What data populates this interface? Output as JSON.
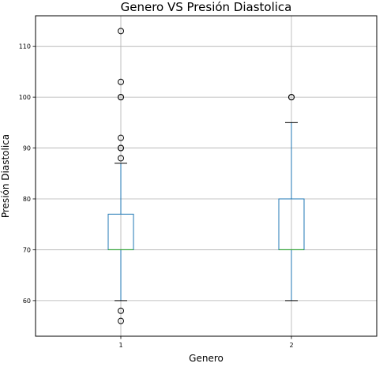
{
  "chart_data": {
    "type": "boxplot",
    "title": "Genero VS Presión Diastolica",
    "xlabel": "Genero",
    "ylabel": "Presión Diastolica",
    "categories": [
      "1",
      "2"
    ],
    "ylim": [
      53,
      116
    ],
    "yticks": [
      60,
      70,
      80,
      90,
      100,
      110
    ],
    "grid": true,
    "boxes": [
      {
        "category": "1",
        "whisker_low": 60,
        "q1": 70,
        "median": 70,
        "q3": 77,
        "whisker_high": 87,
        "outliers": [
          56,
          58,
          88,
          90,
          90,
          92,
          100,
          100,
          103,
          113
        ]
      },
      {
        "category": "2",
        "whisker_low": 60,
        "q1": 70,
        "median": 70,
        "q3": 80,
        "whisker_high": 95,
        "outliers": [
          100,
          100
        ]
      }
    ],
    "colors": {
      "box": "#1f77b4",
      "median": "#2ca02c",
      "whisker": "#1f77b4",
      "cap": "#000000",
      "outlier": "#000000",
      "grid": "#b0b0b0"
    }
  }
}
